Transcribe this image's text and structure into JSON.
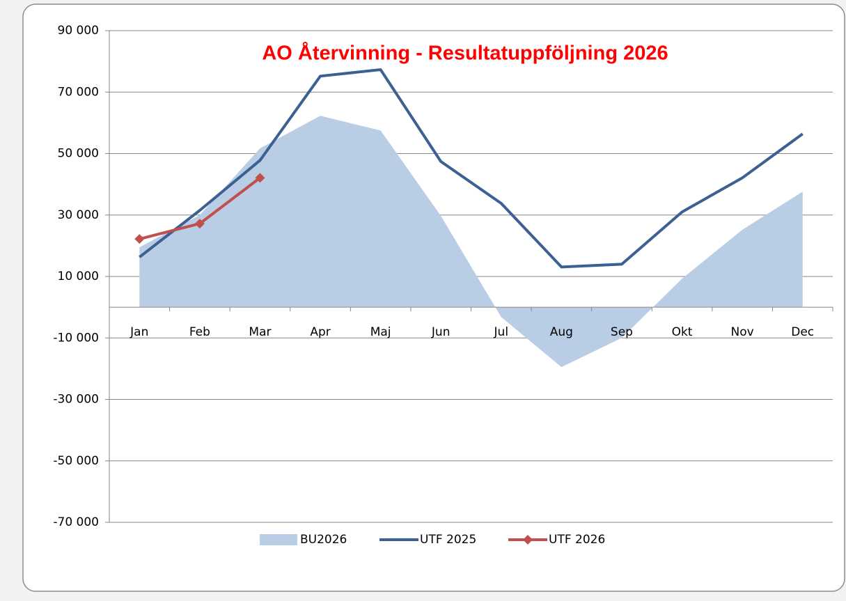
{
  "chart_data": {
    "type": "line",
    "title": "AO Återvinning - Resultatuppföljning 2026",
    "categories": [
      "Jan",
      "Feb",
      "Mar",
      "Apr",
      "Maj",
      "Jun",
      "Jul",
      "Aug",
      "Sep",
      "Okt",
      "Nov",
      "Dec"
    ],
    "series": [
      {
        "name": "BU2026",
        "style": "area",
        "color": "#b9cde5",
        "values": [
          19500,
          30000,
          51700,
          62300,
          57500,
          29700,
          -3200,
          -19500,
          -10000,
          9300,
          25200,
          37600
        ]
      },
      {
        "name": "UTF 2025",
        "style": "line",
        "color": "#3b6091",
        "values": [
          16300,
          31500,
          47800,
          75200,
          77300,
          47400,
          33800,
          13100,
          14000,
          31000,
          42100,
          56400
        ]
      },
      {
        "name": "UTF 2026",
        "style": "line",
        "marker": "diamond",
        "color": "#c0504d",
        "values": [
          22200,
          27200,
          42100,
          null,
          null,
          null,
          null,
          null,
          null,
          null,
          null,
          null
        ]
      }
    ],
    "ylim": [
      -70000,
      90000
    ],
    "yticks": [
      {
        "value": -70000,
        "label": "-70 000"
      },
      {
        "value": -50000,
        "label": "-50 000"
      },
      {
        "value": -30000,
        "label": "-30 000"
      },
      {
        "value": -10000,
        "label": "-10 000"
      },
      {
        "value": 10000,
        "label": "10 000"
      },
      {
        "value": 30000,
        "label": "30 000"
      },
      {
        "value": 50000,
        "label": "50 000"
      },
      {
        "value": 70000,
        "label": "70 000"
      },
      {
        "value": 90000,
        "label": "90 000"
      }
    ],
    "grid": true,
    "legend": "bottom"
  }
}
